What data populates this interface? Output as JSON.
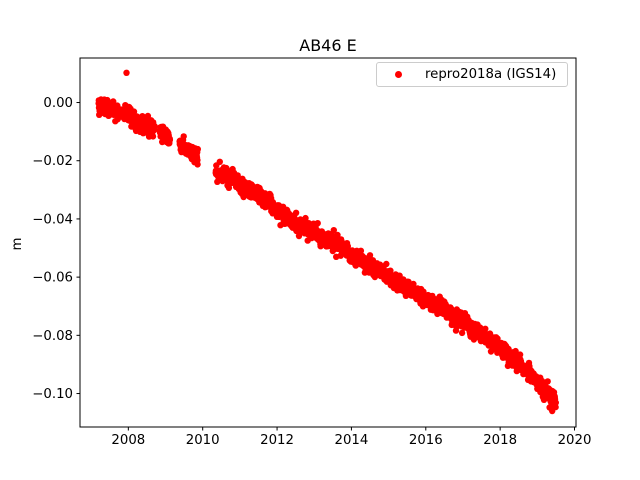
{
  "figure": {
    "background": "#ffffff",
    "spine_color": "#000000",
    "tick_color": "#000000",
    "text_color": "#000000"
  },
  "chart_data": {
    "type": "scatter",
    "title": "AB46 E",
    "xlabel": "",
    "ylabel": "m",
    "grid": false,
    "xlim": [
      2006.7,
      2020.04
    ],
    "ylim": [
      -0.1115,
      0.0153
    ],
    "xticks": [
      {
        "value": 2008,
        "label": "2008"
      },
      {
        "value": 2010,
        "label": "2010"
      },
      {
        "value": 2012,
        "label": "2012"
      },
      {
        "value": 2014,
        "label": "2014"
      },
      {
        "value": 2016,
        "label": "2016"
      },
      {
        "value": 2018,
        "label": "2018"
      },
      {
        "value": 2020,
        "label": "2020"
      }
    ],
    "yticks": [
      {
        "value": 0.0,
        "label": "0.00"
      },
      {
        "value": -0.02,
        "label": "−0.02"
      },
      {
        "value": -0.04,
        "label": "−0.04"
      },
      {
        "value": -0.06,
        "label": "−0.06"
      },
      {
        "value": -0.08,
        "label": "−0.08"
      },
      {
        "value": -0.1,
        "label": "−0.10"
      }
    ],
    "legend": {
      "label": "repro2018a (IGS14)",
      "location": "upper right",
      "marker": "dot",
      "marker_color": "#ff0000",
      "border_color": "#cccccc"
    },
    "series": [
      {
        "name": "repro2018a (IGS14)",
        "color": "#ff0000",
        "marker_radius_px": 3.2,
        "sample_step_days": 2,
        "noise_std_m": 0.0013,
        "seed": 42,
        "trend_anchors": [
          [
            2007.2,
            -0.0008
          ],
          [
            2007.55,
            -0.0025
          ],
          [
            2007.95,
            -0.0042
          ],
          [
            2008.35,
            -0.007
          ],
          [
            2008.71,
            -0.0093
          ],
          [
            2008.85,
            -0.0098
          ],
          [
            2009.12,
            -0.0124
          ],
          [
            2009.38,
            -0.014
          ],
          [
            2009.87,
            -0.0193
          ],
          [
            2010.35,
            -0.0238
          ],
          [
            2010.8,
            -0.0262
          ],
          [
            2011.1,
            -0.029
          ],
          [
            2011.5,
            -0.032
          ],
          [
            2011.8,
            -0.0345
          ],
          [
            2012.1,
            -0.0383
          ],
          [
            2012.45,
            -0.0413
          ],
          [
            2012.8,
            -0.0435
          ],
          [
            2013.2,
            -0.0458
          ],
          [
            2013.6,
            -0.048
          ],
          [
            2014.0,
            -0.0523
          ],
          [
            2014.4,
            -0.0553
          ],
          [
            2014.8,
            -0.0582
          ],
          [
            2015.2,
            -0.062
          ],
          [
            2015.6,
            -0.0643
          ],
          [
            2016.0,
            -0.0683
          ],
          [
            2016.4,
            -0.07
          ],
          [
            2016.8,
            -0.0737
          ],
          [
            2017.2,
            -0.0772
          ],
          [
            2017.6,
            -0.0803
          ],
          [
            2017.93,
            -0.0838
          ],
          [
            2018.0,
            -0.0848
          ],
          [
            2018.4,
            -0.0888
          ],
          [
            2018.63,
            -0.0908
          ],
          [
            2018.72,
            -0.0918
          ],
          [
            2019.0,
            -0.096
          ],
          [
            2019.2,
            -0.099
          ],
          [
            2019.35,
            -0.1008
          ],
          [
            2019.5,
            -0.103
          ]
        ],
        "segments": [
          [
            2007.2,
            2008.71
          ],
          [
            2008.85,
            2009.12
          ],
          [
            2009.38,
            2009.87
          ],
          [
            2010.35,
            2017.93
          ],
          [
            2018.0,
            2018.63
          ],
          [
            2018.72,
            2019.5
          ]
        ],
        "outliers": [
          [
            2007.95,
            0.0102
          ],
          [
            2019.33,
            -0.1048
          ],
          [
            2019.4,
            -0.106
          ]
        ]
      }
    ]
  }
}
